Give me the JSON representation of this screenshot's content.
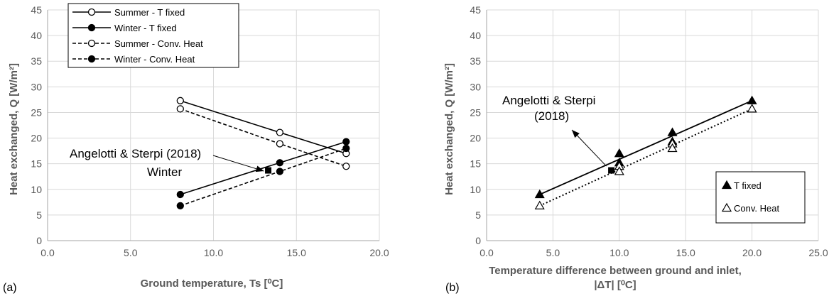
{
  "chart_data": [
    {
      "type": "line",
      "panel_label": "(a)",
      "xlabel": "Ground temperature, Ts [⁰C]",
      "ylabel": "Heat exchanged, Q [W/m²]",
      "xlim": [
        0,
        20
      ],
      "ylim": [
        0,
        45
      ],
      "xticks": [
        "0.0",
        "5.0",
        "10.0",
        "15.0",
        "20.0"
      ],
      "yticks": [
        "0",
        "5",
        "10",
        "15",
        "20",
        "25",
        "30",
        "35",
        "40",
        "45"
      ],
      "grid": true,
      "legend_position": "top-left",
      "series": [
        {
          "name": "Summer - T fixed",
          "style": "solid",
          "marker": "open-circle",
          "x": [
            8,
            14,
            18
          ],
          "y": [
            27.3,
            21.1,
            17.0
          ]
        },
        {
          "name": "Winter - T fixed",
          "style": "solid",
          "marker": "filled-circle",
          "x": [
            8,
            14,
            18
          ],
          "y": [
            9.0,
            15.2,
            19.3
          ]
        },
        {
          "name": "Summer - Conv. Heat",
          "style": "dashed",
          "marker": "open-circle",
          "x": [
            8,
            14,
            18
          ],
          "y": [
            25.7,
            18.9,
            14.5
          ]
        },
        {
          "name": "Winter - Conv. Heat",
          "style": "dashed",
          "marker": "filled-circle",
          "x": [
            8,
            14,
            18
          ],
          "y": [
            6.8,
            13.5,
            18.0
          ]
        }
      ],
      "reference_point": {
        "x": 13.3,
        "y": 13.7
      },
      "annotations": [
        "Angelotti & Sterpi (2018)",
        "Winter"
      ]
    },
    {
      "type": "scatter",
      "panel_label": "(b)",
      "xlabel_line1": "Temperature difference between ground and inlet,",
      "xlabel_line2": "|ΔT| [⁰C]",
      "ylabel": "Heat exchanged, Q [W/m²]",
      "xlim": [
        0,
        25
      ],
      "ylim": [
        0,
        45
      ],
      "xticks": [
        "0.0",
        "5.0",
        "10.0",
        "15.0",
        "20.0",
        "25.0"
      ],
      "yticks": [
        "0",
        "5",
        "10",
        "15",
        "20",
        "25",
        "30",
        "35",
        "40",
        "45"
      ],
      "grid": true,
      "legend_position": "bottom-right",
      "series": [
        {
          "name": "T fixed",
          "marker": "filled-triangle",
          "fit": "solid",
          "x": [
            4,
            10,
            10,
            14,
            14,
            20
          ],
          "y": [
            9.0,
            17.0,
            15.2,
            21.1,
            19.3,
            27.3
          ],
          "fit_line": {
            "x": [
              4,
              20
            ],
            "y": [
              9.0,
              27.3
            ]
          }
        },
        {
          "name": "Conv. Heat",
          "marker": "open-triangle",
          "fit": "dotted",
          "x": [
            4,
            10,
            10,
            14,
            14,
            20
          ],
          "y": [
            6.8,
            14.5,
            13.5,
            18.9,
            18.0,
            25.7
          ],
          "fit_line": {
            "x": [
              4,
              20
            ],
            "y": [
              6.8,
              25.7
            ]
          }
        }
      ],
      "reference_point": {
        "x": 9.4,
        "y": 13.7
      },
      "annotations": [
        "Angelotti & Sterpi",
        "(2018)"
      ]
    }
  ]
}
